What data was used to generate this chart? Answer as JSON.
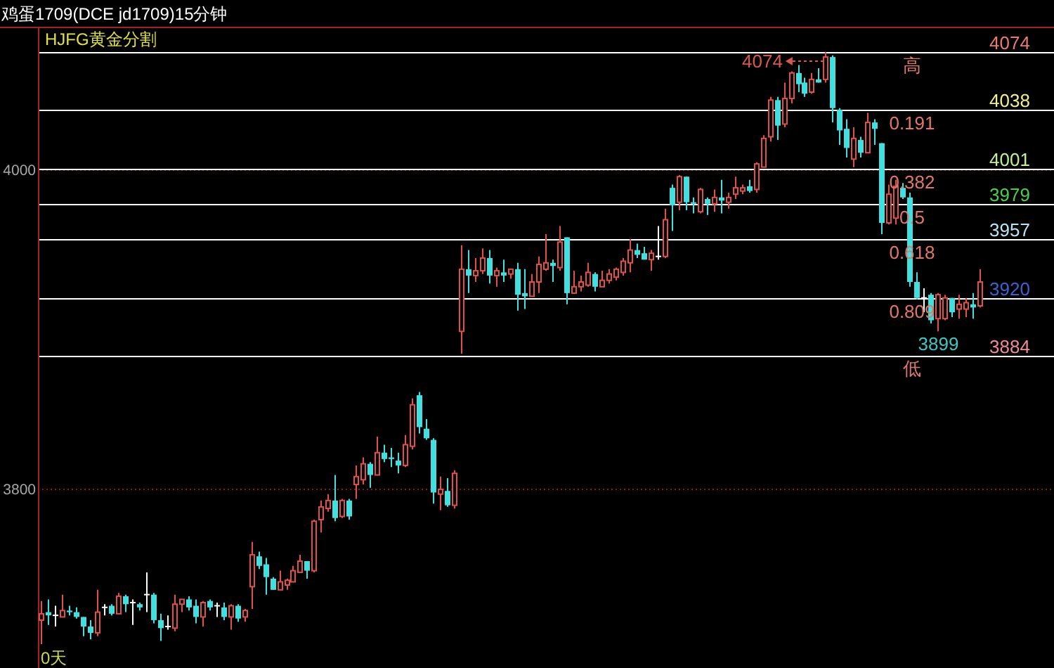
{
  "chart_data": {
    "type": "candlestick",
    "title": "鸡蛋1709(DCE jd1709)15分钟",
    "subtitle": "HJFG黄金分割",
    "categories": [
      null,
      null,
      null,
      null,
      null,
      null,
      null,
      null,
      null,
      null,
      null,
      null,
      null,
      null,
      null,
      null,
      null,
      null,
      null,
      null,
      null,
      null,
      null,
      null,
      null,
      null,
      null,
      null,
      null,
      null,
      null,
      null,
      null,
      null,
      null,
      null,
      null,
      null,
      null,
      null,
      null,
      null,
      null,
      null,
      null,
      null,
      null,
      null,
      null,
      null,
      null,
      null,
      null,
      null,
      null,
      null,
      null,
      null,
      null,
      null,
      null,
      null,
      null,
      null,
      null,
      null,
      null,
      null,
      null,
      null,
      null,
      null,
      null,
      null,
      null,
      null,
      null,
      null,
      null,
      null,
      null,
      null,
      null,
      null,
      null,
      null,
      null,
      null,
      null,
      null,
      null,
      null,
      null,
      null,
      null,
      null,
      null,
      null,
      null,
      null,
      null,
      null,
      null,
      null,
      null,
      null,
      null,
      null,
      null,
      null,
      null,
      null,
      null,
      null,
      null,
      null,
      null,
      null,
      null,
      null,
      null,
      null,
      null,
      null,
      null,
      null,
      null,
      null,
      null,
      null,
      null,
      null,
      null,
      null,
      null,
      null,
      null,
      null,
      null,
      null,
      null,
      null,
      null,
      null,
      null
    ],
    "ohlc": [
      [
        3718,
        3730,
        3703,
        3722
      ],
      [
        3723,
        3731,
        3715,
        3721
      ],
      [
        3721,
        3727,
        3714,
        3721
      ],
      [
        3720,
        3734,
        3720,
        3724
      ],
      [
        3724,
        3727,
        3721,
        3723
      ],
      [
        3723,
        3726,
        3719,
        3720
      ],
      [
        3720,
        3720,
        3708,
        3714
      ],
      [
        3714,
        3718,
        3706,
        3710
      ],
      [
        3710,
        3737,
        3708,
        3723
      ],
      [
        3726,
        3728,
        3721,
        3726
      ],
      [
        3727,
        3728,
        3721,
        3722
      ],
      [
        3722,
        3735,
        3722,
        3733
      ],
      [
        3733,
        3734,
        3723,
        3728
      ],
      [
        3729,
        3731,
        3715,
        3729
      ],
      [
        3728,
        3729,
        3724,
        3726
      ],
      [
        3734,
        3748,
        3723,
        3734
      ],
      [
        3734,
        3735,
        3716,
        3718
      ],
      [
        3718,
        3722,
        3705,
        3713
      ],
      [
        3714,
        3721,
        3712,
        3714
      ],
      [
        3713,
        3734,
        3711,
        3728
      ],
      [
        3728,
        3731,
        3723,
        3731
      ],
      [
        3731,
        3733,
        3724,
        3726
      ],
      [
        3727,
        3731,
        3716,
        3720
      ],
      [
        3720,
        3730,
        3714,
        3729
      ],
      [
        3730,
        3731,
        3724,
        3726
      ],
      [
        3727,
        3729,
        3720,
        3727
      ],
      [
        3726,
        3729,
        3718,
        3720
      ],
      [
        3720,
        3728,
        3712,
        3727
      ],
      [
        3727,
        3728,
        3717,
        3719
      ],
      [
        3720,
        3725,
        3717,
        3724
      ],
      [
        3739,
        3767,
        3725,
        3759
      ],
      [
        3758,
        3761,
        3750,
        3752
      ],
      [
        3753,
        3757,
        3734,
        3745
      ],
      [
        3744,
        3745,
        3737,
        3737
      ],
      [
        3737,
        3749,
        3737,
        3742
      ],
      [
        3740,
        3744,
        3737,
        3743
      ],
      [
        3742,
        3752,
        3742,
        3749
      ],
      [
        3748,
        3759,
        3748,
        3755
      ],
      [
        3755,
        3755,
        3744,
        3749
      ],
      [
        3749,
        3781,
        3748,
        3780
      ],
      [
        3781,
        3793,
        3773,
        3789
      ],
      [
        3788,
        3797,
        3786,
        3793
      ],
      [
        3793,
        3809,
        3780,
        3782
      ],
      [
        3783,
        3794,
        3782,
        3793
      ],
      [
        3793,
        3794,
        3781,
        3783
      ],
      [
        3803,
        3815,
        3794,
        3808
      ],
      [
        3806,
        3820,
        3803,
        3816
      ],
      [
        3816,
        3817,
        3801,
        3809
      ],
      [
        3809,
        3833,
        3809,
        3823
      ],
      [
        3823,
        3828,
        3817,
        3819
      ],
      [
        3820,
        3826,
        3814,
        3819
      ],
      [
        3818,
        3823,
        3810,
        3815
      ],
      [
        3815,
        3834,
        3814,
        3828
      ],
      [
        3827,
        3857,
        3825,
        3853
      ],
      [
        3859,
        3861,
        3835,
        3839
      ],
      [
        3838,
        3844,
        3831,
        3832
      ],
      [
        3831,
        3832,
        3791,
        3798
      ],
      [
        3797,
        3808,
        3787,
        3800
      ],
      [
        3799,
        3807,
        3789,
        3790
      ],
      [
        3790,
        3812,
        3788,
        3810
      ],
      [
        3899,
        3953,
        3885,
        3938
      ],
      [
        3938,
        3950,
        3923,
        3934
      ],
      [
        3934,
        3945,
        3930,
        3937
      ],
      [
        3937,
        3951,
        3935,
        3945
      ],
      [
        3945,
        3950,
        3929,
        3934
      ],
      [
        3934,
        3939,
        3927,
        3937
      ],
      [
        3936,
        3944,
        3930,
        3934
      ],
      [
        3935,
        3938,
        3932,
        3938
      ],
      [
        3938,
        3942,
        3912,
        3922
      ],
      [
        3923,
        3938,
        3913,
        3921
      ],
      [
        3921,
        3935,
        3921,
        3930
      ],
      [
        3930,
        3946,
        3923,
        3941
      ],
      [
        3938,
        3960,
        3937,
        3942
      ],
      [
        3942,
        3944,
        3930,
        3940
      ],
      [
        3939,
        3965,
        3937,
        3955
      ],
      [
        3958,
        3958,
        3916,
        3923
      ],
      [
        3923,
        3937,
        3923,
        3927
      ],
      [
        3927,
        3934,
        3924,
        3930
      ],
      [
        3928,
        3942,
        3927,
        3936
      ],
      [
        3935,
        3936,
        3924,
        3927
      ],
      [
        3927,
        3937,
        3927,
        3931
      ],
      [
        3931,
        3938,
        3929,
        3935
      ],
      [
        3933,
        3939,
        3931,
        3938
      ],
      [
        3936,
        3945,
        3934,
        3943
      ],
      [
        3942,
        3957,
        3936,
        3950
      ],
      [
        3950,
        3954,
        3945,
        3947
      ],
      [
        3948,
        3952,
        3944,
        3944
      ],
      [
        3944,
        3950,
        3937,
        3948
      ],
      [
        3946,
        3965,
        3944,
        3946
      ],
      [
        3946,
        3976,
        3945,
        3969
      ],
      [
        3989,
        3991,
        3962,
        3978
      ],
      [
        3980,
        3997,
        3975,
        3996
      ],
      [
        3996,
        3996,
        3975,
        3980
      ],
      [
        3980,
        3983,
        3973,
        3979
      ],
      [
        3974,
        3989,
        3973,
        3988
      ],
      [
        3982,
        3983,
        3972,
        3979
      ],
      [
        3979,
        3988,
        3974,
        3983
      ],
      [
        3983,
        3994,
        3973,
        3981
      ],
      [
        3980,
        3986,
        3976,
        3983
      ],
      [
        3985,
        3996,
        3982,
        3989
      ],
      [
        3987,
        3991,
        3985,
        3989
      ],
      [
        3990,
        3994,
        3986,
        3987
      ],
      [
        3988,
        4005,
        3986,
        4004
      ],
      [
        4002,
        4022,
        4002,
        4020
      ],
      [
        4021,
        4046,
        4018,
        4044
      ],
      [
        4044,
        4046,
        4019,
        4028
      ],
      [
        4029,
        4055,
        4027,
        4045
      ],
      [
        4045,
        4062,
        4042,
        4061
      ],
      [
        4061,
        4066,
        4049,
        4054
      ],
      [
        4055,
        4058,
        4046,
        4048
      ],
      [
        4049,
        4061,
        4048,
        4057
      ],
      [
        4057,
        4064,
        4055,
        4055
      ],
      [
        4057,
        4074,
        4055,
        4071
      ],
      [
        4071,
        4072,
        4030,
        4039
      ],
      [
        4038,
        4039,
        4016,
        4025
      ],
      [
        4026,
        4032,
        4008,
        4014
      ],
      [
        4007,
        4027,
        4002,
        4020
      ],
      [
        4019,
        4021,
        4008,
        4011
      ],
      [
        4011,
        4036,
        4011,
        4030
      ],
      [
        4030,
        4032,
        4016,
        4026
      ],
      [
        4017,
        4017,
        3960,
        3967
      ],
      [
        3967,
        3991,
        3966,
        3985
      ],
      [
        3970,
        3994,
        3966,
        3990
      ],
      [
        3989,
        3992,
        3982,
        3983
      ],
      [
        3983,
        3986,
        3927,
        3930
      ],
      [
        3930,
        3936,
        3919,
        3920
      ],
      [
        3920,
        3926,
        3911,
        3920
      ],
      [
        3922,
        3923,
        3904,
        3906
      ],
      [
        3907,
        3923,
        3899,
        3922
      ],
      [
        3907,
        3922,
        3906,
        3920
      ],
      [
        3920,
        3920,
        3908,
        3911
      ],
      [
        3913,
        3922,
        3907,
        3916
      ],
      [
        3913,
        3920,
        3908,
        3917
      ],
      [
        3916,
        3923,
        3907,
        3914
      ],
      [
        3915,
        3938,
        3914,
        3930
      ],
      null,
      null,
      null,
      null,
      null,
      null,
      null,
      null,
      null,
      null
    ],
    "colors": [
      "#e25048",
      "#40e0e0",
      "#ffffff",
      "#e25048",
      "#40e0e0",
      "#40e0e0",
      "#40e0e0",
      "#40e0e0",
      "#e25048",
      "#ffffff",
      "#40e0e0",
      "#e25048",
      "#40e0e0",
      "#ffffff",
      "#40e0e0",
      "#ffffff",
      "#40e0e0",
      "#40e0e0",
      "#ffffff",
      "#e25048",
      "#e25048",
      "#40e0e0",
      "#40e0e0",
      "#e25048",
      "#40e0e0",
      "#ffffff",
      "#40e0e0",
      "#e25048",
      "#40e0e0",
      "#e25048",
      "#e25048",
      "#40e0e0",
      "#40e0e0",
      "#40e0e0",
      "#e25048",
      "#e25048",
      "#e25048",
      "#e25048",
      "#40e0e0",
      "#e25048",
      "#e25048",
      "#e25048",
      "#40e0e0",
      "#e25048",
      "#40e0e0",
      "#e25048",
      "#e25048",
      "#40e0e0",
      "#e25048",
      "#40e0e0",
      "#40e0e0",
      "#40e0e0",
      "#e25048",
      "#e25048",
      "#40e0e0",
      "#40e0e0",
      "#40e0e0",
      "#e25048",
      "#40e0e0",
      "#e25048",
      "#e25048",
      "#40e0e0",
      "#e25048",
      "#e25048",
      "#40e0e0",
      "#e25048",
      "#40e0e0",
      "#e25048",
      "#40e0e0",
      "#40e0e0",
      "#e25048",
      "#e25048",
      "#e25048",
      "#40e0e0",
      "#e25048",
      "#40e0e0",
      "#e25048",
      "#e25048",
      "#e25048",
      "#40e0e0",
      "#e25048",
      "#e25048",
      "#e25048",
      "#e25048",
      "#e25048",
      "#40e0e0",
      "#40e0e0",
      "#e25048",
      "#ffffff",
      "#e25048",
      "#40e0e0",
      "#e25048",
      "#40e0e0",
      "#40e0e0",
      "#e25048",
      "#40e0e0",
      "#e25048",
      "#40e0e0",
      "#e25048",
      "#e25048",
      "#e25048",
      "#40e0e0",
      "#e25048",
      "#e25048",
      "#e25048",
      "#40e0e0",
      "#e25048",
      "#e25048",
      "#40e0e0",
      "#40e0e0",
      "#e25048",
      "#40e0e0",
      "#e25048",
      "#40e0e0",
      "#40e0e0",
      "#40e0e0",
      "#e25048",
      "#40e0e0",
      "#e25048",
      "#40e0e0",
      "#40e0e0",
      "#e25048",
      "#e25048",
      "#40e0e0",
      "#40e0e0",
      "#40e0e0",
      "#ffffff",
      "#40e0e0",
      "#e25048",
      "#e25048",
      "#40e0e0",
      "#e25048",
      "#e25048",
      "#40e0e0",
      "#e25048",
      null,
      null,
      null,
      null,
      null,
      null,
      null,
      null,
      null,
      null
    ],
    "value_labels": [
      null,
      null,
      null,
      null,
      null,
      null,
      null,
      null,
      null,
      null,
      null,
      null,
      null,
      null,
      null,
      null,
      null,
      null,
      null,
      null,
      null,
      null,
      null,
      null,
      null,
      null,
      null,
      null,
      null,
      null,
      null,
      null,
      null,
      null,
      null,
      null,
      null,
      null,
      null,
      null,
      null,
      null,
      null,
      null,
      null,
      null,
      null,
      null,
      null,
      null,
      null,
      null,
      null,
      null,
      null,
      null,
      null,
      null,
      null,
      null,
      null,
      null,
      null,
      null,
      null,
      null,
      null,
      null,
      null,
      null,
      null,
      null,
      null,
      null,
      null,
      null,
      null,
      null,
      null,
      null,
      null,
      null,
      null,
      null,
      null,
      null,
      null,
      null,
      null,
      null,
      null,
      null,
      null,
      null,
      null,
      null,
      null,
      null,
      null,
      null,
      null,
      null,
      null,
      null,
      null,
      null,
      null,
      null,
      null,
      null,
      null,
      null,
      "4074",
      null,
      null,
      null,
      null,
      null,
      null,
      null,
      null,
      null,
      null,
      null,
      null,
      null,
      null,
      null,
      "3899",
      null,
      null,
      null,
      null,
      null,
      null,
      null,
      null,
      null,
      null,
      null,
      null,
      null,
      null,
      null,
      null
    ],
    "ylim": [
      3688,
      4090
    ],
    "yticks": [
      3800,
      4000
    ],
    "grid": "y",
    "tick_labels": "y",
    "ref_lines": [
      {
        "axis": "y",
        "value": 4074,
        "label": "4074",
        "color": "#ffffff"
      },
      {
        "axis": "y",
        "value": 4038,
        "label": "4038",
        "color": "#ffffff"
      },
      {
        "axis": "y",
        "value": 4001,
        "label": "4001",
        "color": "#ffffff"
      },
      {
        "axis": "y",
        "value": 3979,
        "label": "3979",
        "color": "#ffffff"
      },
      {
        "axis": "y",
        "value": 3957,
        "label": "3957",
        "color": "#ffffff"
      },
      {
        "axis": "y",
        "value": 3920,
        "label": "3920",
        "color": "#ffffff"
      },
      {
        "axis": "y",
        "value": 3884,
        "label": "3884",
        "color": "#ffffff"
      }
    ],
    "annotations": [
      "0天",
      {
        "text": "高",
        "y": 4074
      },
      {
        "text": "0.191",
        "y": 4038
      },
      {
        "text": "0.382",
        "y": 4001
      },
      {
        "text": "0.5",
        "y": 3979
      },
      {
        "text": "0.618",
        "y": 3957
      },
      {
        "text": "0.809",
        "y": 3920
      },
      {
        "text": "低",
        "y": 3884
      }
    ]
  }
}
